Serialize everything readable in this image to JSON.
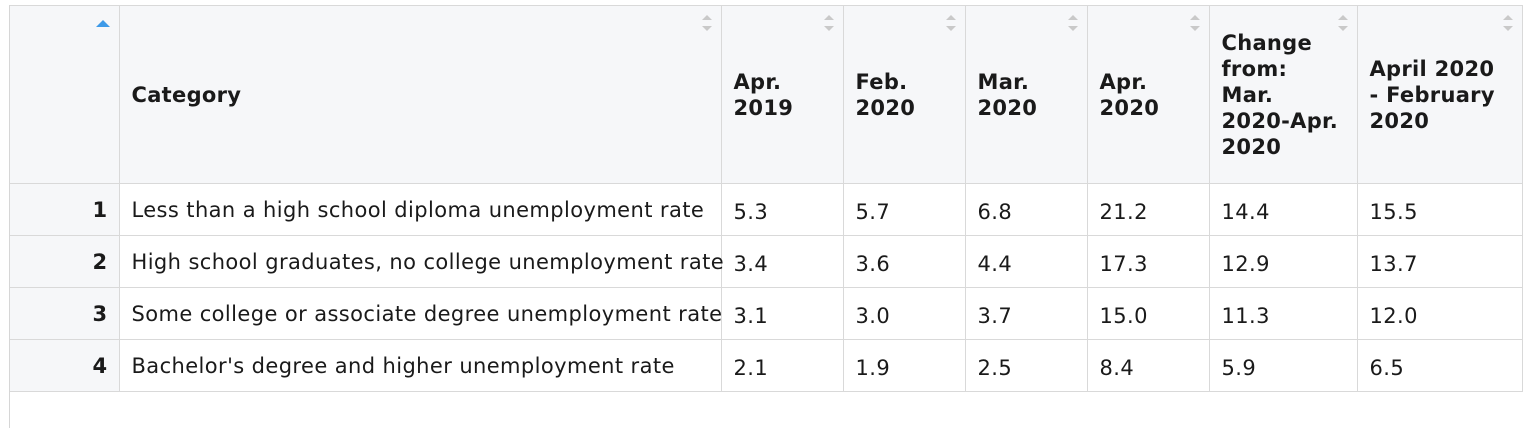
{
  "table": {
    "columns": [
      {
        "key": "category",
        "label": "Category"
      },
      {
        "key": "apr2019",
        "label": "Apr. 2019"
      },
      {
        "key": "feb2020",
        "label": "Feb. 2020"
      },
      {
        "key": "mar2020",
        "label": "Mar. 2020"
      },
      {
        "key": "apr2020",
        "label": "Apr. 2020"
      },
      {
        "key": "change",
        "label": "Change from: Mar. 2020-Apr. 2020"
      },
      {
        "key": "apr_feb",
        "label": "April 2020 - February 2020"
      }
    ],
    "rows": [
      {
        "num": "1",
        "category": "Less than a high school diploma unemployment rate",
        "values": [
          "5.3",
          "5.7",
          "6.8",
          "21.2",
          "14.4",
          "15.5"
        ]
      },
      {
        "num": "2",
        "category": "High school graduates, no college unemployment rate",
        "values": [
          "3.4",
          "3.6",
          "4.4",
          "17.3",
          "12.9",
          "13.7"
        ]
      },
      {
        "num": "3",
        "category": "Some college or associate degree unemployment rate",
        "values": [
          "3.1",
          "3.0",
          "3.7",
          "15.0",
          "11.3",
          "12.0"
        ]
      },
      {
        "num": "4",
        "category": "Bachelor's degree and higher unemployment rate",
        "values": [
          "2.1",
          "1.9",
          "2.5",
          "8.4",
          "5.9",
          "6.5"
        ]
      }
    ]
  },
  "colors": {
    "header_bg": "#f6f7f9",
    "border": "#d9d9d9",
    "sort_active": "#3e9ae8",
    "sort_inactive": "#c9c9c9"
  },
  "icons": {
    "sort_active": "sort-ascending-icon",
    "sort_inactive": "sort-both-icon"
  }
}
